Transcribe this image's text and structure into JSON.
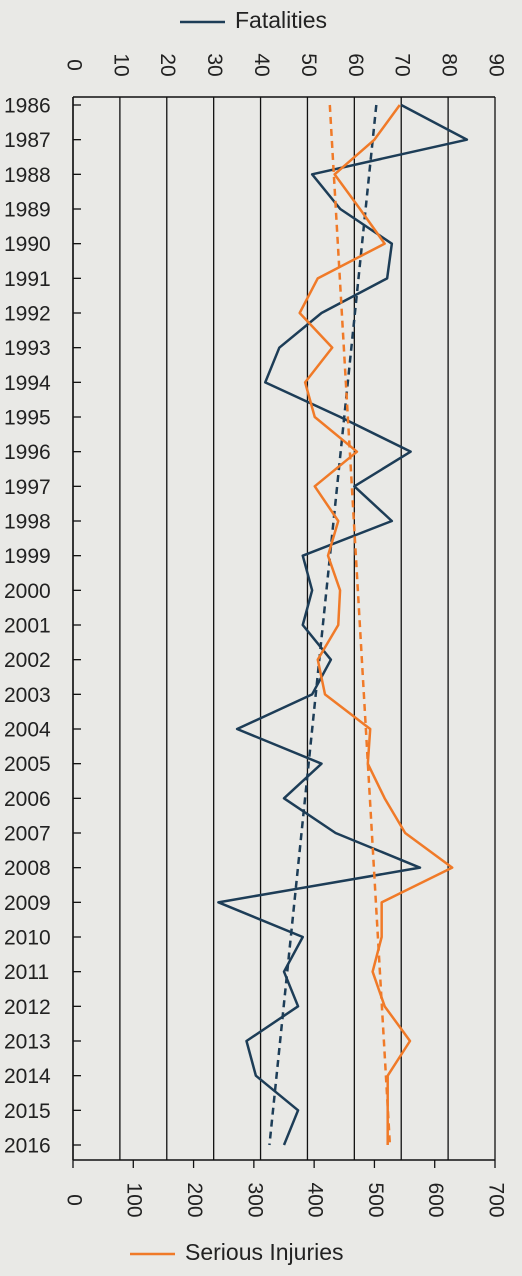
{
  "chart_data": {
    "type": "line",
    "orientation": "vertical",
    "x": [
      1986,
      1987,
      1988,
      1989,
      1990,
      1991,
      1992,
      1993,
      1994,
      1995,
      1996,
      1997,
      1998,
      1999,
      2000,
      2001,
      2002,
      2003,
      2004,
      2005,
      2006,
      2007,
      2008,
      2009,
      2010,
      2011,
      2012,
      2013,
      2014,
      2015,
      2016
    ],
    "series": [
      {
        "name": "Fatalities",
        "color": "#1d3d57",
        "trend": true,
        "values": [
          70,
          84,
          51,
          57,
          68,
          67,
          53,
          44,
          41,
          57,
          72,
          60,
          68,
          49,
          51,
          49,
          55,
          51,
          35,
          53,
          45,
          56,
          74,
          31,
          49,
          45,
          48,
          37,
          39,
          48,
          45
        ]
      },
      {
        "name": "Serious Injuries",
        "color": "#f07a28",
        "axis": "y2",
        "trend": true,
        "values": [
          542,
          500,
          434,
          476,
          517,
          406,
          376,
          430,
          385,
          401,
          471,
          401,
          440,
          423,
          443,
          440,
          406,
          418,
          493,
          489,
          517,
          551,
          629,
          512,
          512,
          497,
          517,
          559,
          522,
          522,
          522
        ]
      }
    ],
    "ylim": [
      0,
      90
    ],
    "yticks": [
      0,
      10,
      20,
      30,
      40,
      50,
      60,
      70,
      80,
      90
    ],
    "y2lim": [
      0,
      700
    ],
    "y2ticks": [
      0,
      100,
      200,
      300,
      400,
      500,
      600,
      700
    ],
    "grid": true
  }
}
